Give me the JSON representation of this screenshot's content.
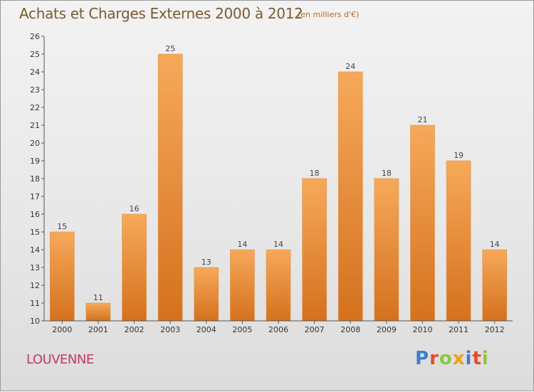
{
  "header": {
    "title": "Achats et Charges Externes 2000 à 2012",
    "unit": "(en milliers d'€)"
  },
  "footer": {
    "town": "LOUVENNE",
    "brand": "Proxiti",
    "brand_colors": [
      "#3a7fd0",
      "#e84a2a",
      "#8cc63f",
      "#f0a010",
      "#3a7fd0",
      "#e84a2a",
      "#8cc63f"
    ]
  },
  "colors": {
    "bar_light": "#f6a95a",
    "bar_dark": "#d4711e",
    "axis": "#555555"
  },
  "chart_data": {
    "type": "bar",
    "title": "Achats et Charges Externes 2000 à 2012",
    "subtitle": "(en milliers d'€)",
    "xlabel": "",
    "ylabel": "",
    "categories": [
      "2000",
      "2001",
      "2002",
      "2003",
      "2004",
      "2005",
      "2006",
      "2007",
      "2008",
      "2009",
      "2010",
      "2011",
      "2012"
    ],
    "values": [
      15,
      11,
      16,
      25,
      13,
      14,
      14,
      18,
      24,
      18,
      21,
      19,
      14
    ],
    "ylim": [
      10,
      26
    ],
    "yticks": [
      10,
      11,
      12,
      13,
      14,
      15,
      16,
      17,
      18,
      19,
      20,
      21,
      22,
      23,
      24,
      25,
      26
    ],
    "grid": false,
    "legend": "none"
  }
}
